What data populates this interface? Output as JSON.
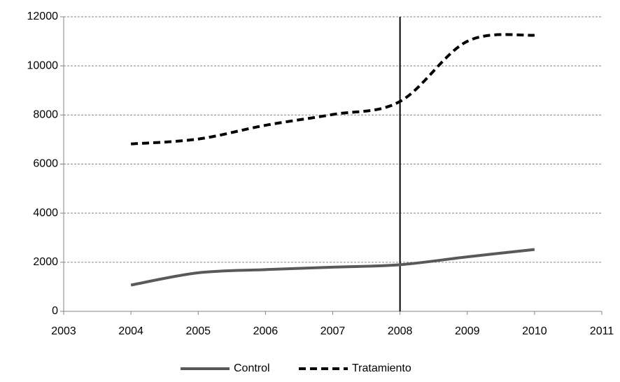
{
  "chart_data": {
    "type": "line",
    "x": [
      2004,
      2005,
      2006,
      2007,
      2008,
      2009,
      2010
    ],
    "series": [
      {
        "name": "Control",
        "color": "#595959",
        "dash": false,
        "values": [
          1070,
          1570,
          1700,
          1800,
          1900,
          2220,
          2520
        ]
      },
      {
        "name": "Tratamiento",
        "color": "#000000",
        "dash": true,
        "values": [
          6820,
          7020,
          7580,
          8020,
          8550,
          11000,
          11250
        ]
      }
    ],
    "xlim": [
      2003,
      2011
    ],
    "xticks": [
      2003,
      2004,
      2005,
      2006,
      2007,
      2008,
      2009,
      2010,
      2011
    ],
    "ylim": [
      0,
      12000
    ],
    "yticks": [
      0,
      2000,
      4000,
      6000,
      8000,
      10000,
      12000
    ],
    "grid": true,
    "smooth": true,
    "reference_x": 2008,
    "legend": "bottom"
  }
}
